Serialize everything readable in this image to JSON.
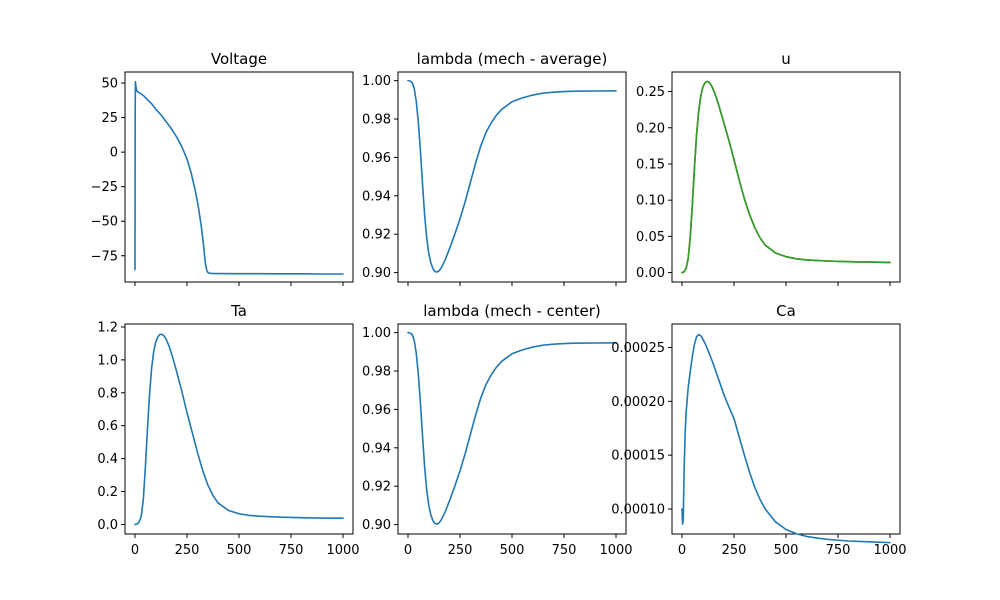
{
  "chart_data": [
    {
      "type": "line",
      "title": "Voltage",
      "xlim": [
        -48,
        1048
      ],
      "ylim": [
        -94,
        58
      ],
      "xticks": [
        0,
        250,
        500,
        750,
        1000
      ],
      "show_xtick_labels": false,
      "yticks": [
        -75,
        -50,
        -25,
        0,
        25,
        50
      ],
      "ytick_labels": [
        "−75",
        "−50",
        "−25",
        "0",
        "25",
        "50"
      ],
      "series": [
        {
          "color": "#1f77b4",
          "x": [
            0,
            1,
            2,
            4,
            6,
            10,
            20,
            40,
            60,
            80,
            100,
            125,
            150,
            175,
            200,
            225,
            250,
            270,
            290,
            305,
            320,
            330,
            335,
            340,
            345,
            350,
            355,
            360,
            370,
            400,
            500,
            600,
            700,
            800,
            900,
            1000
          ],
          "y": [
            -85,
            30,
            51,
            48,
            46,
            44,
            43,
            41,
            38,
            35,
            31,
            27,
            22,
            17,
            11,
            4,
            -5,
            -15,
            -28,
            -40,
            -55,
            -68,
            -76,
            -82,
            -85.5,
            -87,
            -87.5,
            -87.7,
            -87.8,
            -87.9,
            -88,
            -88,
            -88.1,
            -88.1,
            -88.2,
            -88.2
          ]
        }
      ]
    },
    {
      "type": "line",
      "title": "lambda (mech - average)",
      "xlim": [
        -48,
        1048
      ],
      "ylim": [
        0.8951,
        1.0045
      ],
      "xticks": [
        0,
        250,
        500,
        750,
        1000
      ],
      "show_xtick_labels": false,
      "yticks": [
        0.9,
        0.92,
        0.94,
        0.96,
        0.98,
        1.0
      ],
      "ytick_labels": [
        "0.90",
        "0.92",
        "0.94",
        "0.96",
        "0.98",
        "1.00"
      ],
      "series": [
        {
          "color": "#1f77b4",
          "x": [
            0,
            10,
            20,
            30,
            40,
            50,
            60,
            70,
            80,
            90,
            100,
            110,
            120,
            130,
            140,
            150,
            160,
            180,
            200,
            225,
            250,
            275,
            300,
            325,
            350,
            375,
            400,
            425,
            450,
            500,
            550,
            600,
            650,
            700,
            750,
            800,
            900,
            1000
          ],
          "y": [
            1.0,
            0.9998,
            0.999,
            0.996,
            0.989,
            0.978,
            0.963,
            0.946,
            0.93,
            0.918,
            0.91,
            0.905,
            0.902,
            0.9005,
            0.9003,
            0.901,
            0.9025,
            0.907,
            0.9125,
            0.92,
            0.928,
            0.937,
            0.947,
            0.957,
            0.966,
            0.973,
            0.978,
            0.982,
            0.985,
            0.989,
            0.991,
            0.9925,
            0.9935,
            0.994,
            0.9943,
            0.9945,
            0.9946,
            0.9947
          ]
        }
      ]
    },
    {
      "type": "line",
      "title": "u",
      "xlim": [
        -48,
        1048
      ],
      "ylim": [
        -0.013,
        0.277
      ],
      "xticks": [
        0,
        250,
        500,
        750,
        1000
      ],
      "show_xtick_labels": false,
      "yticks": [
        0.0,
        0.05,
        0.1,
        0.15,
        0.2,
        0.25
      ],
      "ytick_labels": [
        "0.00",
        "0.05",
        "0.10",
        "0.15",
        "0.20",
        "0.25"
      ],
      "series": [
        {
          "color": "#1f77b4",
          "x": [
            0,
            10,
            20,
            30,
            40,
            50,
            60,
            70,
            80,
            90,
            100,
            110,
            120,
            130,
            140,
            150,
            165,
            180,
            200,
            225,
            250,
            275,
            300,
            325,
            350,
            375,
            400,
            450,
            500,
            550,
            600,
            700,
            800,
            900,
            1000
          ],
          "y": [
            0.0,
            0.001,
            0.006,
            0.02,
            0.05,
            0.095,
            0.145,
            0.19,
            0.222,
            0.243,
            0.256,
            0.262,
            0.264,
            0.263,
            0.259,
            0.253,
            0.242,
            0.228,
            0.208,
            0.183,
            0.156,
            0.128,
            0.102,
            0.08,
            0.062,
            0.048,
            0.038,
            0.027,
            0.022,
            0.019,
            0.0175,
            0.016,
            0.015,
            0.0145,
            0.014
          ]
        },
        {
          "color": "#ff7f0e",
          "x": [
            0,
            10,
            20,
            30,
            40,
            50,
            60,
            70,
            80,
            90,
            100,
            110,
            120,
            130,
            140,
            150,
            165,
            180,
            200,
            225,
            250,
            275,
            300,
            325,
            350,
            375,
            400,
            450,
            500,
            550,
            600,
            700,
            800,
            900,
            1000
          ],
          "y": [
            0.0,
            0.001,
            0.006,
            0.02,
            0.05,
            0.095,
            0.145,
            0.19,
            0.222,
            0.243,
            0.256,
            0.262,
            0.264,
            0.263,
            0.259,
            0.253,
            0.242,
            0.228,
            0.208,
            0.183,
            0.156,
            0.128,
            0.102,
            0.08,
            0.062,
            0.048,
            0.038,
            0.027,
            0.022,
            0.019,
            0.0175,
            0.016,
            0.015,
            0.0145,
            0.014
          ]
        },
        {
          "color": "#2ca02c",
          "x": [
            0,
            10,
            20,
            30,
            40,
            50,
            60,
            70,
            80,
            90,
            100,
            110,
            120,
            130,
            140,
            150,
            165,
            180,
            200,
            225,
            250,
            275,
            300,
            325,
            350,
            375,
            400,
            450,
            500,
            550,
            600,
            700,
            800,
            900,
            1000
          ],
          "y": [
            0.0,
            0.001,
            0.006,
            0.02,
            0.05,
            0.095,
            0.145,
            0.19,
            0.222,
            0.243,
            0.256,
            0.262,
            0.264,
            0.263,
            0.259,
            0.253,
            0.242,
            0.228,
            0.208,
            0.183,
            0.156,
            0.128,
            0.102,
            0.08,
            0.062,
            0.048,
            0.038,
            0.027,
            0.022,
            0.019,
            0.0175,
            0.016,
            0.015,
            0.0145,
            0.014
          ]
        }
      ]
    },
    {
      "type": "line",
      "title": "Ta",
      "xlim": [
        -48,
        1048
      ],
      "ylim": [
        -0.058,
        1.218
      ],
      "xticks": [
        0,
        250,
        500,
        750,
        1000
      ],
      "show_xtick_labels": true,
      "xtick_labels": [
        "0",
        "250",
        "500",
        "750",
        "1000"
      ],
      "yticks": [
        0.0,
        0.2,
        0.4,
        0.6,
        0.8,
        1.0,
        1.2
      ],
      "ytick_labels": [
        "0.0",
        "0.2",
        "0.4",
        "0.6",
        "0.8",
        "1.0",
        "1.2"
      ],
      "series": [
        {
          "color": "#1f77b4",
          "x": [
            0,
            10,
            20,
            30,
            40,
            50,
            60,
            70,
            80,
            90,
            100,
            110,
            120,
            130,
            140,
            150,
            165,
            180,
            200,
            225,
            250,
            275,
            300,
            325,
            350,
            375,
            400,
            450,
            500,
            550,
            600,
            700,
            800,
            900,
            1000
          ],
          "y": [
            0.0,
            0.003,
            0.015,
            0.05,
            0.15,
            0.35,
            0.58,
            0.79,
            0.95,
            1.05,
            1.11,
            1.14,
            1.155,
            1.155,
            1.145,
            1.125,
            1.08,
            1.02,
            0.93,
            0.81,
            0.68,
            0.56,
            0.44,
            0.33,
            0.24,
            0.175,
            0.13,
            0.085,
            0.065,
            0.055,
            0.05,
            0.044,
            0.041,
            0.039,
            0.038
          ]
        }
      ]
    },
    {
      "type": "line",
      "title": "lambda (mech - center)",
      "xlim": [
        -48,
        1048
      ],
      "ylim": [
        0.8951,
        1.0045
      ],
      "xticks": [
        0,
        250,
        500,
        750,
        1000
      ],
      "show_xtick_labels": true,
      "xtick_labels": [
        "0",
        "250",
        "500",
        "750",
        "1000"
      ],
      "yticks": [
        0.9,
        0.92,
        0.94,
        0.96,
        0.98,
        1.0
      ],
      "ytick_labels": [
        "0.90",
        "0.92",
        "0.94",
        "0.96",
        "0.98",
        "1.00"
      ],
      "series": [
        {
          "color": "#1f77b4",
          "x": [
            0,
            10,
            20,
            30,
            40,
            50,
            60,
            70,
            80,
            90,
            100,
            110,
            120,
            130,
            140,
            150,
            160,
            180,
            200,
            225,
            250,
            275,
            300,
            325,
            350,
            375,
            400,
            425,
            450,
            500,
            550,
            600,
            650,
            700,
            750,
            800,
            900,
            1000
          ],
          "y": [
            1.0,
            0.9998,
            0.999,
            0.996,
            0.989,
            0.978,
            0.963,
            0.946,
            0.93,
            0.918,
            0.91,
            0.905,
            0.902,
            0.9005,
            0.9003,
            0.901,
            0.9025,
            0.907,
            0.9125,
            0.92,
            0.928,
            0.937,
            0.947,
            0.957,
            0.966,
            0.973,
            0.978,
            0.982,
            0.985,
            0.989,
            0.991,
            0.9925,
            0.9935,
            0.994,
            0.9943,
            0.9945,
            0.9946,
            0.9947
          ]
        }
      ]
    },
    {
      "type": "line",
      "title": "Ca",
      "xlim": [
        -48,
        1048
      ],
      "ylim": [
        7.68e-05,
        0.0002718
      ],
      "xticks": [
        0,
        250,
        500,
        750,
        1000
      ],
      "show_xtick_labels": true,
      "xtick_labels": [
        "0",
        "250",
        "500",
        "750",
        "1000"
      ],
      "yticks": [
        0.0001,
        0.00015,
        0.0002,
        0.00025
      ],
      "ytick_labels": [
        "0.00010",
        "0.00015",
        "0.00020",
        "0.00025"
      ],
      "series": [
        {
          "color": "#1f77b4",
          "x": [
            0,
            3,
            6,
            10,
            15,
            20,
            30,
            40,
            50,
            60,
            70,
            80,
            90,
            100,
            115,
            130,
            150,
            175,
            200,
            225,
            250,
            275,
            300,
            325,
            350,
            375,
            400,
            450,
            500,
            550,
            600,
            650,
            700,
            800,
            900,
            1000
          ],
          "y": [
            0.0001,
            8.6e-05,
            9e-05,
            0.000135,
            0.00017,
            0.00019,
            0.000213,
            0.000228,
            0.000242,
            0.000253,
            0.00026,
            0.000262,
            0.000261,
            0.000258,
            0.000252,
            0.000245,
            0.000235,
            0.000221,
            0.000207,
            0.000195,
            0.000184,
            0.000167,
            0.00015,
            0.000134,
            0.00012,
            0.000109,
            0.0001,
            8.8e-05,
            8.1e-05,
            7.7e-05,
            7.45e-05,
            7.3e-05,
            7.18e-05,
            7.03e-05,
            6.95e-05,
            6.88e-05
          ]
        }
      ]
    }
  ]
}
